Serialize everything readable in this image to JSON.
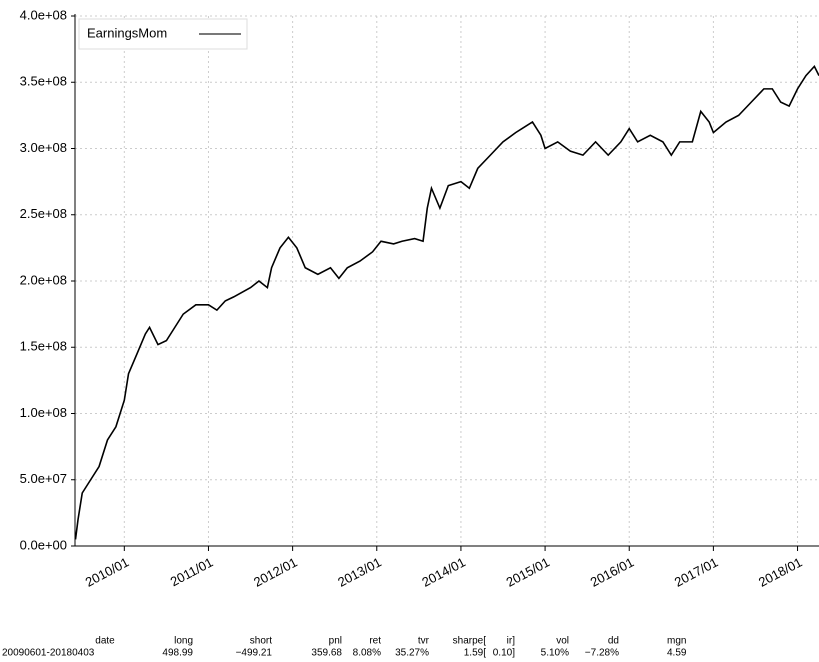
{
  "chart_data": {
    "type": "line",
    "series": [
      {
        "name": "EarningsMom",
        "color": "#000000",
        "x": [
          2009.42,
          2009.45,
          2009.5,
          2009.6,
          2009.7,
          2009.8,
          2009.9,
          2010.0,
          2010.05,
          2010.15,
          2010.25,
          2010.3,
          2010.4,
          2010.5,
          2010.6,
          2010.7,
          2010.85,
          2011.0,
          2011.1,
          2011.2,
          2011.3,
          2011.5,
          2011.6,
          2011.7,
          2011.75,
          2011.85,
          2011.95,
          2012.05,
          2012.15,
          2012.3,
          2012.45,
          2012.55,
          2012.65,
          2012.8,
          2012.95,
          2013.05,
          2013.2,
          2013.3,
          2013.45,
          2013.55,
          2013.6,
          2013.65,
          2013.75,
          2013.85,
          2014.0,
          2014.1,
          2014.2,
          2014.35,
          2014.5,
          2014.65,
          2014.85,
          2014.95,
          2015.0,
          2015.15,
          2015.3,
          2015.45,
          2015.6,
          2015.75,
          2015.9,
          2016.0,
          2016.1,
          2016.25,
          2016.4,
          2016.5,
          2016.6,
          2016.75,
          2016.85,
          2016.95,
          2017.0,
          2017.15,
          2017.3,
          2017.45,
          2017.6,
          2017.7,
          2017.8,
          2017.9,
          2018.0,
          2018.1,
          2018.2,
          2018.255
        ],
        "values": [
          5000000,
          20000000,
          40000000,
          50000000,
          60000000,
          80000000,
          90000000,
          110000000,
          130000000,
          145000000,
          160000000,
          165000000,
          152000000,
          155000000,
          165000000,
          175000000,
          182000000,
          182000000,
          178000000,
          185000000,
          188000000,
          195000000,
          200000000,
          195000000,
          210000000,
          225000000,
          233000000,
          225000000,
          210000000,
          205000000,
          210000000,
          202000000,
          210000000,
          215000000,
          222000000,
          230000000,
          228000000,
          230000000,
          232000000,
          230000000,
          255000000,
          270000000,
          255000000,
          272000000,
          275000000,
          270000000,
          285000000,
          295000000,
          305000000,
          312000000,
          320000000,
          310000000,
          300000000,
          305000000,
          298000000,
          295000000,
          305000000,
          295000000,
          305000000,
          315000000,
          305000000,
          310000000,
          305000000,
          295000000,
          305000000,
          305000000,
          328000000,
          320000000,
          312000000,
          320000000,
          325000000,
          335000000,
          345000000,
          345000000,
          335000000,
          332000000,
          345000000,
          355000000,
          362000000,
          355000000
        ]
      }
    ],
    "xlim": [
      2009.414,
      2018.255
    ],
    "xticks": [
      {
        "value": 2010.0,
        "label": "2010/01"
      },
      {
        "value": 2011.0,
        "label": "2011/01"
      },
      {
        "value": 2012.0,
        "label": "2012/01"
      },
      {
        "value": 2013.0,
        "label": "2013/01"
      },
      {
        "value": 2014.0,
        "label": "2014/01"
      },
      {
        "value": 2015.0,
        "label": "2015/01"
      },
      {
        "value": 2016.0,
        "label": "2016/01"
      },
      {
        "value": 2017.0,
        "label": "2017/01"
      },
      {
        "value": 2018.0,
        "label": "2018/01"
      }
    ],
    "ylim": [
      0,
      400000000
    ],
    "yticks": [
      {
        "value": 0,
        "label": "0.0e+00"
      },
      {
        "value": 50000000,
        "label": "5.0e+07"
      },
      {
        "value": 100000000,
        "label": "1.0e+08"
      },
      {
        "value": 150000000,
        "label": "1.5e+08"
      },
      {
        "value": 200000000,
        "label": "2.0e+08"
      },
      {
        "value": 250000000,
        "label": "2.5e+08"
      },
      {
        "value": 300000000,
        "label": "3.0e+08"
      },
      {
        "value": 350000000,
        "label": "3.5e+08"
      },
      {
        "value": 400000000,
        "label": "4.0e+08"
      }
    ],
    "grid": true,
    "legend": "upper left"
  },
  "stats": {
    "headers": [
      "date",
      "long",
      "short",
      "pnl",
      "ret",
      "tvr",
      "sharpe[",
      "ir]",
      "vol",
      "dd",
      "mgn"
    ],
    "rows": [
      [
        "20090601-20180403",
        "498.99",
        "−499.21",
        "359.68",
        "8.08%",
        "35.27%",
        "1.59[",
        "0.10]",
        "5.10%",
        "−7.28%",
        "4.59"
      ]
    ]
  }
}
